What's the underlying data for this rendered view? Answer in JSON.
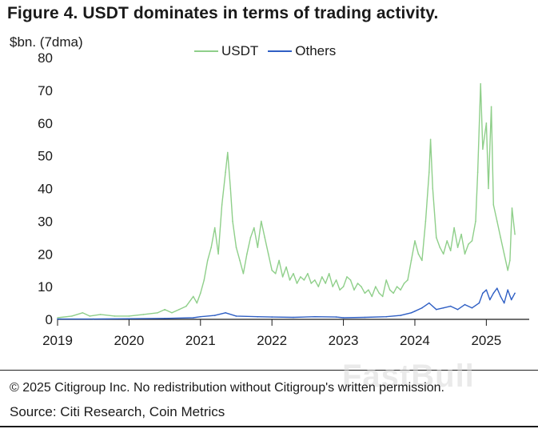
{
  "chart_data": {
    "type": "line",
    "title": "Figure 4. USDT dominates in terms of trading activity.",
    "ylabel": "$bn. (7dma)",
    "xlabel": "",
    "ylim": [
      0,
      80
    ],
    "y_ticks": [
      "0",
      "10",
      "20",
      "30",
      "40",
      "50",
      "60",
      "70",
      "80"
    ],
    "xlim": [
      2019.0,
      2025.6
    ],
    "x_ticks": [
      "2019",
      "2020",
      "2021",
      "2022",
      "2023",
      "2024",
      "2025"
    ],
    "x_tick_values": [
      2019,
      2020,
      2021,
      2022,
      2023,
      2024,
      2025
    ],
    "legend_position": "top",
    "series": [
      {
        "name": "USDT",
        "color": "#8fcf8a",
        "x": [
          2019.0,
          2019.2,
          2019.35,
          2019.45,
          2019.6,
          2019.8,
          2020.0,
          2020.2,
          2020.4,
          2020.5,
          2020.6,
          2020.7,
          2020.8,
          2020.9,
          2020.95,
          2021.0,
          2021.05,
          2021.1,
          2021.15,
          2021.2,
          2021.25,
          2021.3,
          2021.35,
          2021.38,
          2021.42,
          2021.45,
          2021.5,
          2021.55,
          2021.6,
          2021.65,
          2021.7,
          2021.75,
          2021.8,
          2021.85,
          2021.9,
          2021.95,
          2022.0,
          2022.05,
          2022.1,
          2022.15,
          2022.2,
          2022.25,
          2022.3,
          2022.35,
          2022.4,
          2022.45,
          2022.5,
          2022.55,
          2022.6,
          2022.65,
          2022.7,
          2022.75,
          2022.8,
          2022.85,
          2022.9,
          2022.95,
          2023.0,
          2023.05,
          2023.1,
          2023.15,
          2023.2,
          2023.25,
          2023.3,
          2023.35,
          2023.4,
          2023.45,
          2023.5,
          2023.55,
          2023.6,
          2023.65,
          2023.7,
          2023.75,
          2023.8,
          2023.85,
          2023.9,
          2023.95,
          2024.0,
          2024.05,
          2024.1,
          2024.15,
          2024.2,
          2024.22,
          2024.25,
          2024.3,
          2024.35,
          2024.4,
          2024.45,
          2024.5,
          2024.55,
          2024.6,
          2024.65,
          2024.7,
          2024.75,
          2024.8,
          2024.85,
          2024.88,
          2024.92,
          2024.95,
          2025.0,
          2025.03,
          2025.07,
          2025.1,
          2025.15,
          2025.2,
          2025.25,
          2025.3,
          2025.33,
          2025.36,
          2025.4
        ],
        "values": [
          0.5,
          1,
          2,
          1,
          1.5,
          1,
          1,
          1.5,
          2,
          3,
          2,
          3,
          4,
          7,
          5,
          8,
          12,
          18,
          22,
          28,
          20,
          35,
          45,
          51,
          40,
          30,
          22,
          18,
          14,
          20,
          25,
          28,
          22,
          30,
          25,
          20,
          15,
          14,
          18,
          13,
          16,
          12,
          14,
          11,
          13,
          12,
          14,
          11,
          12,
          10,
          13,
          11,
          14,
          10,
          12,
          9,
          10,
          13,
          12,
          9,
          11,
          10,
          8,
          9,
          7,
          10,
          8,
          7,
          12,
          9,
          8,
          10,
          9,
          11,
          12,
          18,
          24,
          20,
          18,
          30,
          45,
          55,
          40,
          25,
          22,
          20,
          24,
          21,
          28,
          22,
          26,
          20,
          23,
          24,
          30,
          45,
          72,
          52,
          60,
          40,
          65,
          35,
          30,
          25,
          20,
          15,
          18,
          34,
          26
        ],
        "range_note": "peaks ~51 (2021) and ~72 (late 2024)"
      },
      {
        "name": "Others",
        "color": "#2f5fc4",
        "x": [
          2019.0,
          2019.5,
          2020.0,
          2020.5,
          2020.9,
          2021.0,
          2021.2,
          2021.35,
          2021.5,
          2021.8,
          2022.0,
          2022.3,
          2022.6,
          2022.9,
          2023.0,
          2023.3,
          2023.6,
          2023.8,
          2023.95,
          2024.0,
          2024.1,
          2024.2,
          2024.3,
          2024.4,
          2024.5,
          2024.6,
          2024.7,
          2024.8,
          2024.9,
          2024.95,
          2025.0,
          2025.05,
          2025.1,
          2025.15,
          2025.2,
          2025.25,
          2025.3,
          2025.35,
          2025.4
        ],
        "values": [
          0.1,
          0.1,
          0.2,
          0.3,
          0.5,
          0.8,
          1.2,
          2,
          1,
          0.8,
          0.7,
          0.6,
          0.8,
          0.7,
          0.5,
          0.6,
          0.8,
          1.2,
          2,
          2.5,
          3.5,
          5,
          3,
          3.5,
          4,
          3,
          4.5,
          3.5,
          5,
          8,
          9,
          6,
          8,
          9.5,
          7,
          5,
          9,
          6,
          8
        ]
      }
    ]
  },
  "footer": {
    "copyright": "© 2025 Citigroup Inc. No redistribution without Citigroup's written permission.",
    "source": "Source: Citi Research, Coin Metrics"
  },
  "watermark": "FastBull"
}
